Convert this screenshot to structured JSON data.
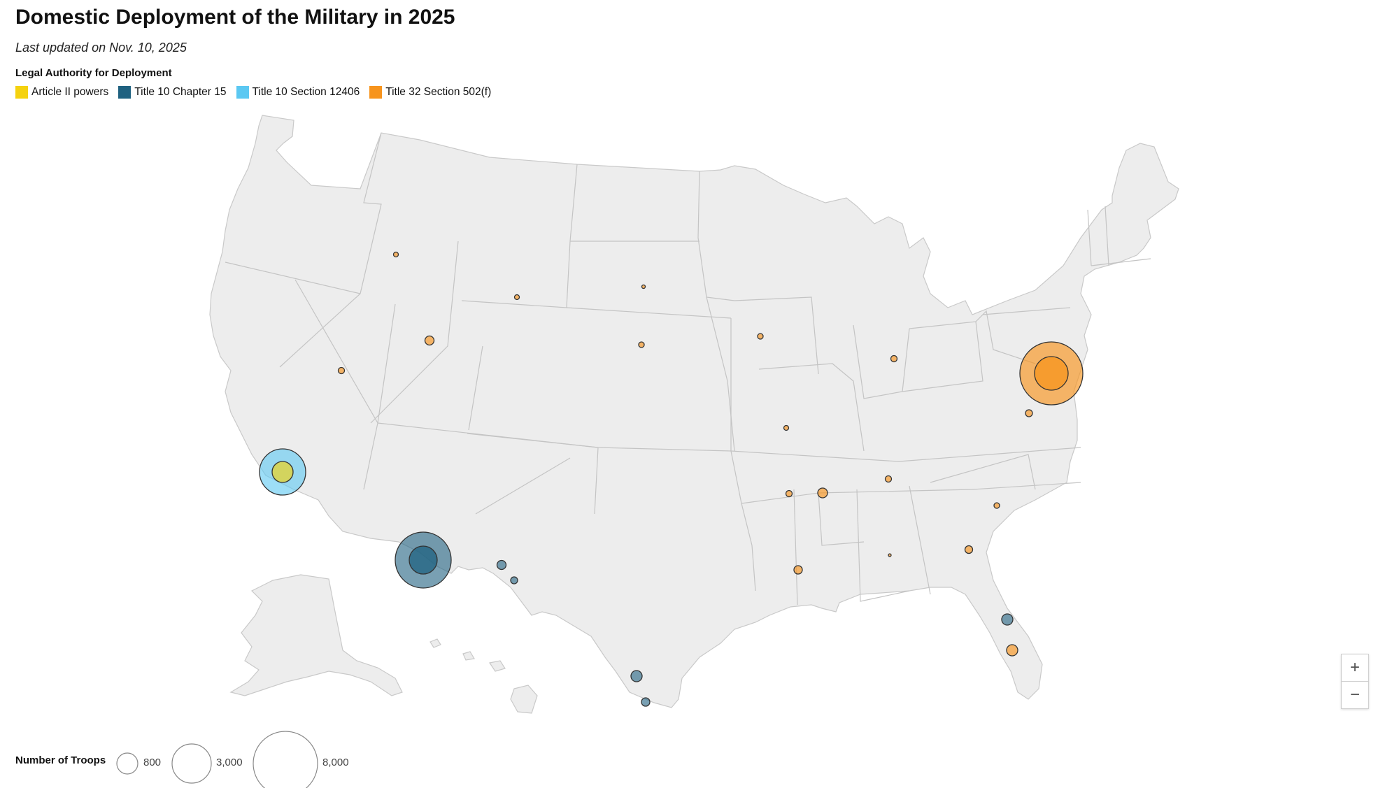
{
  "title": "Domestic Deployment of the Military in 2025",
  "subtitle": "Last updated on Nov. 10, 2025",
  "legend": {
    "title": "Legal Authority for Deployment",
    "items": [
      {
        "label": "Article II powers",
        "color": "#f5d20f"
      },
      {
        "label": "Title 10 Chapter 15",
        "color": "#1f6180"
      },
      {
        "label": "Title 10 Section 12406",
        "color": "#5bc8f2"
      },
      {
        "label": "Title 32 Section 502(f)",
        "color": "#f7941d"
      }
    ]
  },
  "size_legend": {
    "title": "Number of Troops",
    "values": [
      "800",
      "3,000",
      "8,000"
    ]
  },
  "zoom": {
    "in_label": "+",
    "out_label": "−"
  }
}
